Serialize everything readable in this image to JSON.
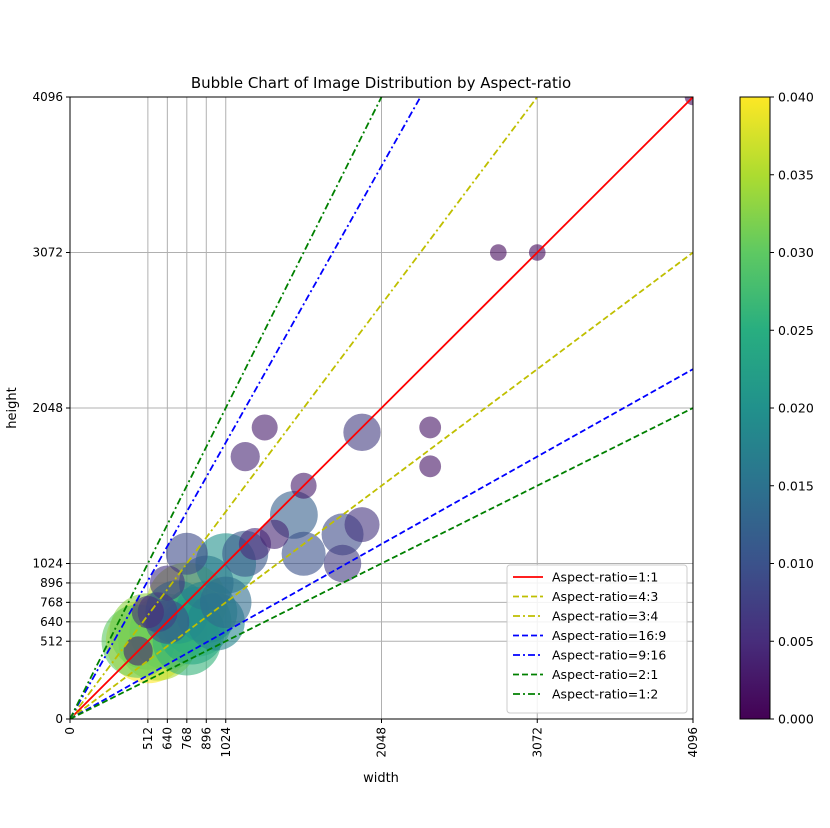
{
  "chart_data": {
    "type": "scatter",
    "title": "Bubble Chart of Image Distribution by Aspect-ratio",
    "xlabel": "width",
    "ylabel": "height",
    "xlim": [
      0,
      4096
    ],
    "ylim": [
      0,
      4096
    ],
    "x_ticks": [
      0,
      512,
      640,
      768,
      896,
      1024,
      2048,
      3072,
      4096
    ],
    "y_ticks": [
      0,
      512,
      640,
      768,
      896,
      1024,
      2048,
      3072,
      4096
    ],
    "x_tick_labels": [
      "0",
      "512",
      "640",
      "768",
      "896",
      "1024",
      "2048",
      "3072",
      "4096"
    ],
    "y_tick_labels": [
      "0",
      "512",
      "640",
      "768",
      "896",
      "1024",
      "2048",
      "3072",
      "4096"
    ],
    "grid": true,
    "legend_position": "lower-right",
    "reference_lines": [
      {
        "label": "Aspect-ratio=1:1",
        "ratio": 1.0,
        "color": "#ff0000",
        "dash": "solid"
      },
      {
        "label": "Aspect-ratio=4:3",
        "ratio": 0.75,
        "color": "#bfbf00",
        "dash": "dashed"
      },
      {
        "label": "Aspect-ratio=3:4",
        "ratio": 1.3333,
        "color": "#bfbf00",
        "dash": "dashdot"
      },
      {
        "label": "Aspect-ratio=16:9",
        "ratio": 0.5625,
        "color": "#0000ff",
        "dash": "dashed"
      },
      {
        "label": "Aspect-ratio=9:16",
        "ratio": 1.7778,
        "color": "#0000ff",
        "dash": "dashdot"
      },
      {
        "label": "Aspect-ratio=2:1",
        "ratio": 0.5,
        "color": "#008000",
        "dash": "dashed"
      },
      {
        "label": "Aspect-ratio=1:2",
        "ratio": 2.0,
        "color": "#008000",
        "dash": "dashdot"
      }
    ],
    "colorbar": {
      "min": 0.0,
      "max": 0.04,
      "ticks": [
        0.0,
        0.005,
        0.01,
        0.015,
        0.02,
        0.025,
        0.03,
        0.035,
        0.04
      ],
      "tick_labels": [
        "0.000",
        "0.005",
        "0.010",
        "0.015",
        "0.020",
        "0.025",
        "0.030",
        "0.035",
        "0.040"
      ],
      "colormap": "viridis"
    },
    "bubbles": [
      {
        "w": 512,
        "h": 512,
        "f": 0.04
      },
      {
        "w": 576,
        "h": 512,
        "f": 0.035
      },
      {
        "w": 512,
        "h": 576,
        "f": 0.033
      },
      {
        "w": 448,
        "h": 512,
        "f": 0.03
      },
      {
        "w": 640,
        "h": 576,
        "f": 0.032
      },
      {
        "w": 768,
        "h": 768,
        "f": 0.036
      },
      {
        "w": 768,
        "h": 512,
        "f": 0.026
      },
      {
        "w": 800,
        "h": 576,
        "f": 0.024
      },
      {
        "w": 832,
        "h": 640,
        "f": 0.027
      },
      {
        "w": 896,
        "h": 704,
        "f": 0.021
      },
      {
        "w": 960,
        "h": 640,
        "f": 0.018
      },
      {
        "w": 1024,
        "h": 768,
        "f": 0.014
      },
      {
        "w": 1024,
        "h": 1024,
        "f": 0.02
      },
      {
        "w": 896,
        "h": 896,
        "f": 0.016
      },
      {
        "w": 704,
        "h": 704,
        "f": 0.022
      },
      {
        "w": 640,
        "h": 640,
        "f": 0.01
      },
      {
        "w": 576,
        "h": 704,
        "f": 0.008
      },
      {
        "w": 640,
        "h": 896,
        "f": 0.006
      },
      {
        "w": 768,
        "h": 1088,
        "f": 0.009
      },
      {
        "w": 1152,
        "h": 1088,
        "f": 0.011
      },
      {
        "w": 1472,
        "h": 1344,
        "f": 0.012
      },
      {
        "w": 1536,
        "h": 1088,
        "f": 0.01
      },
      {
        "w": 1792,
        "h": 1216,
        "f": 0.009
      },
      {
        "w": 1792,
        "h": 1024,
        "f": 0.007
      },
      {
        "w": 1920,
        "h": 1280,
        "f": 0.006
      },
      {
        "w": 1920,
        "h": 1888,
        "f": 0.007
      },
      {
        "w": 1152,
        "h": 1728,
        "f": 0.004
      },
      {
        "w": 1280,
        "h": 1920,
        "f": 0.003
      },
      {
        "w": 512,
        "h": 704,
        "f": 0.005
      },
      {
        "w": 448,
        "h": 448,
        "f": 0.004
      },
      {
        "w": 1216,
        "h": 1152,
        "f": 0.005
      },
      {
        "w": 1344,
        "h": 1216,
        "f": 0.004
      },
      {
        "w": 1536,
        "h": 1536,
        "f": 0.003
      },
      {
        "w": 2368,
        "h": 1920,
        "f": 0.002
      },
      {
        "w": 2368,
        "h": 1664,
        "f": 0.002
      },
      {
        "w": 3072,
        "h": 3072,
        "f": 0.001
      },
      {
        "w": 2816,
        "h": 3072,
        "f": 0.001
      },
      {
        "w": 4096,
        "h": 4096,
        "f": 0.001
      }
    ],
    "legend_entries": [
      "Aspect-ratio=1:1",
      "Aspect-ratio=4:3",
      "Aspect-ratio=3:4",
      "Aspect-ratio=16:9",
      "Aspect-ratio=9:16",
      "Aspect-ratio=2:1",
      "Aspect-ratio=1:2"
    ]
  }
}
